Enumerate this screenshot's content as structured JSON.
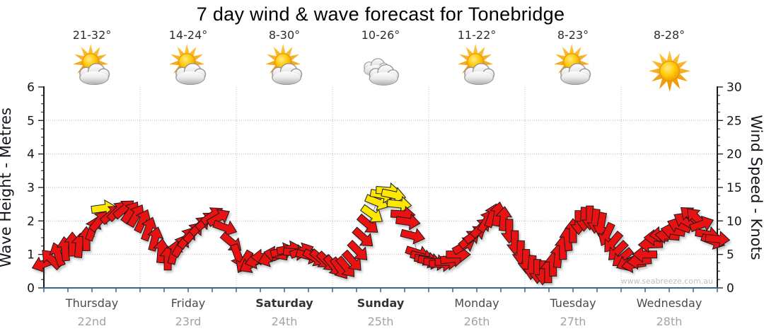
{
  "title": "7 day wind & wave forecast for Tonebridge",
  "watermark": "www.seabreeze.com.au",
  "axes": {
    "left_title": "Wave Height - Metres",
    "right_title": "Wind Speed - Knots",
    "left_ticks": [
      "6",
      "5",
      "4",
      "3",
      "2",
      "1",
      "0"
    ],
    "right_ticks": [
      "30",
      "25",
      "20",
      "15",
      "10",
      "5",
      "0"
    ]
  },
  "days": [
    {
      "name": "Thursday",
      "date": "22nd",
      "temp": "21-32°",
      "icon": "sun-cloud",
      "weekend": false
    },
    {
      "name": "Friday",
      "date": "23rd",
      "temp": "14-24°",
      "icon": "sun-cloud",
      "weekend": false
    },
    {
      "name": "Saturday",
      "date": "24th",
      "temp": "8-30°",
      "icon": "sun-cloud",
      "weekend": true
    },
    {
      "name": "Sunday",
      "date": "25th",
      "temp": "10-26°",
      "icon": "cloud",
      "weekend": true
    },
    {
      "name": "Monday",
      "date": "26th",
      "temp": "11-22°",
      "icon": "sun-cloud",
      "weekend": false
    },
    {
      "name": "Tuesday",
      "date": "27th",
      "temp": "8-23°",
      "icon": "sun-cloud",
      "weekend": false
    },
    {
      "name": "Wednesday",
      "date": "28th",
      "temp": "8-28°",
      "icon": "sun",
      "weekend": false
    }
  ],
  "chart_data": {
    "type": "line",
    "subtype": "wind-arrow-series",
    "x_unit": "hour_of_week",
    "y_unit": "knots",
    "left_axis": {
      "label": "Wave Height - Metres",
      "range": [
        0,
        6
      ]
    },
    "right_axis": {
      "label": "Wind Speed - Knots",
      "range": [
        0,
        30
      ]
    },
    "colors": {
      "arrow": "#e81212",
      "strong_arrow": "#ffe800",
      "outline": "#1a1a1a"
    },
    "point_format": "[hour_of_week, wind_knots, arrow_rotation_deg (0=east, clockwise), strong_flag]",
    "points": [
      [
        0,
        3.6,
        160,
        0
      ],
      [
        1.8,
        4.3,
        -135,
        0
      ],
      [
        3.5,
        5,
        -110,
        0
      ],
      [
        5.3,
        5.8,
        -95,
        0
      ],
      [
        7.1,
        6.5,
        -90,
        0
      ],
      [
        8.8,
        6.3,
        -85,
        0
      ],
      [
        10.6,
        7.3,
        -90,
        0
      ],
      [
        12.2,
        8.8,
        -70,
        0
      ],
      [
        13.8,
        10,
        -50,
        0
      ],
      [
        14.8,
        11.9,
        -8,
        1
      ],
      [
        16.8,
        11,
        -40,
        0
      ],
      [
        18.4,
        11.5,
        -45,
        0
      ],
      [
        20,
        11.8,
        -40,
        0
      ],
      [
        21.6,
        11.3,
        -55,
        0
      ],
      [
        23,
        10.8,
        -60,
        0
      ],
      [
        24.6,
        10,
        -65,
        0
      ],
      [
        26.1,
        8.8,
        -70,
        0
      ],
      [
        27.7,
        7.3,
        -75,
        0
      ],
      [
        29.3,
        5.5,
        -85,
        0
      ],
      [
        30.9,
        4.4,
        -90,
        0
      ],
      [
        32.5,
        5.3,
        -75,
        0
      ],
      [
        34.1,
        6.3,
        -60,
        0
      ],
      [
        35.7,
        7.5,
        -55,
        0
      ],
      [
        37.3,
        8.3,
        -50,
        0
      ],
      [
        38.9,
        9.3,
        -45,
        0
      ],
      [
        40.5,
        10,
        -40,
        0
      ],
      [
        42,
        10.8,
        -35,
        0
      ],
      [
        43.6,
        10.5,
        -30,
        0
      ],
      [
        45.2,
        9,
        20,
        0
      ],
      [
        46.8,
        6.8,
        40,
        0
      ],
      [
        48.4,
        4.8,
        70,
        0
      ],
      [
        50,
        3.9,
        120,
        0
      ],
      [
        51.6,
        3.5,
        150,
        0
      ],
      [
        53.2,
        4.1,
        165,
        0
      ],
      [
        54.8,
        4.6,
        180,
        0
      ],
      [
        56.4,
        4.4,
        160,
        0
      ],
      [
        57.9,
        5,
        -170,
        0
      ],
      [
        59.5,
        5.5,
        -15,
        0
      ],
      [
        61.1,
        5.8,
        -10,
        0
      ],
      [
        62.7,
        5.3,
        5,
        0
      ],
      [
        64.3,
        5.5,
        -20,
        0
      ],
      [
        65.9,
        4.8,
        15,
        0
      ],
      [
        67.5,
        4.5,
        30,
        0
      ],
      [
        69.1,
        4.3,
        40,
        0
      ],
      [
        70.7,
        3.9,
        45,
        0
      ],
      [
        72.3,
        3.3,
        50,
        0
      ],
      [
        73.8,
        2.9,
        55,
        0
      ],
      [
        75.4,
        3.1,
        50,
        0
      ],
      [
        77,
        4,
        48,
        0
      ],
      [
        78.4,
        5.5,
        45,
        0
      ],
      [
        79.7,
        7.5,
        42,
        0
      ],
      [
        80.9,
        9.5,
        40,
        0
      ],
      [
        81.9,
        11,
        35,
        1
      ],
      [
        83.1,
        12.8,
        22,
        1
      ],
      [
        84.4,
        13.9,
        10,
        1
      ],
      [
        85.8,
        14.5,
        4,
        1
      ],
      [
        87.2,
        13.9,
        12,
        1
      ],
      [
        88.6,
        12.5,
        6,
        1
      ],
      [
        89.5,
        11,
        3,
        0
      ],
      [
        90.8,
        9.9,
        8,
        0
      ],
      [
        92,
        7.8,
        14,
        0
      ],
      [
        93.2,
        5.2,
        18,
        0
      ],
      [
        94.4,
        4.6,
        15,
        0
      ],
      [
        95.4,
        4.2,
        10,
        0
      ],
      [
        96.3,
        4,
        10,
        0
      ],
      [
        97.7,
        3.8,
        5,
        0
      ],
      [
        99.1,
        3.6,
        0,
        0
      ],
      [
        100.5,
        3.9,
        0,
        0
      ],
      [
        101.9,
        4.3,
        -5,
        0
      ],
      [
        103.3,
        5,
        0,
        0
      ],
      [
        104.8,
        6.3,
        -30,
        0
      ],
      [
        106.2,
        7.3,
        -40,
        0
      ],
      [
        107.6,
        8,
        -35,
        0
      ],
      [
        109,
        9,
        -45,
        0
      ],
      [
        110.4,
        10,
        -60,
        0
      ],
      [
        111.8,
        10.8,
        -70,
        0
      ],
      [
        113.2,
        11,
        -80,
        0
      ],
      [
        114.7,
        10.3,
        -85,
        0
      ],
      [
        116.1,
        8.5,
        90,
        0
      ],
      [
        117.5,
        6.8,
        90,
        0
      ],
      [
        118.9,
        5.3,
        92,
        0
      ],
      [
        120.3,
        4,
        90,
        0
      ],
      [
        121.7,
        3.1,
        95,
        0
      ],
      [
        123.1,
        2.5,
        90,
        0
      ],
      [
        124.5,
        2.3,
        92,
        0
      ],
      [
        125.8,
        2.5,
        -90,
        0
      ],
      [
        127,
        3.5,
        -90,
        0
      ],
      [
        128.3,
        4.8,
        -85,
        0
      ],
      [
        129.5,
        6,
        -90,
        0
      ],
      [
        130.7,
        7.3,
        -95,
        0
      ],
      [
        132,
        8.5,
        -90,
        0
      ],
      [
        133.4,
        9.8,
        90,
        0
      ],
      [
        134.8,
        10.3,
        92,
        0
      ],
      [
        136.2,
        10.5,
        90,
        0
      ],
      [
        137.6,
        10,
        95,
        0
      ],
      [
        139,
        9.5,
        100,
        0
      ],
      [
        140.4,
        8,
        115,
        0
      ],
      [
        141.9,
        6.8,
        130,
        0
      ],
      [
        143.1,
        5.5,
        135,
        0
      ],
      [
        144.3,
        4.5,
        140,
        0
      ],
      [
        145.7,
        3.8,
        155,
        0
      ],
      [
        147.2,
        3.5,
        170,
        0
      ],
      [
        148.6,
        4,
        175,
        0
      ],
      [
        150,
        5,
        180,
        0
      ],
      [
        151.4,
        6.5,
        178,
        0
      ],
      [
        152.8,
        7.5,
        180,
        0
      ],
      [
        154.2,
        8,
        175,
        0
      ],
      [
        155.6,
        7.8,
        -175,
        0
      ],
      [
        157,
        8.5,
        -170,
        0
      ],
      [
        158.5,
        9.3,
        -160,
        0
      ],
      [
        159.9,
        10,
        -150,
        0
      ],
      [
        161.3,
        10.8,
        -140,
        0
      ],
      [
        162.7,
        10.5,
        -135,
        0
      ],
      [
        164.1,
        9.5,
        -20,
        0
      ],
      [
        165.5,
        8,
        10,
        0
      ],
      [
        166.9,
        7,
        20,
        0
      ],
      [
        168,
        7.3,
        5,
        0
      ]
    ]
  }
}
